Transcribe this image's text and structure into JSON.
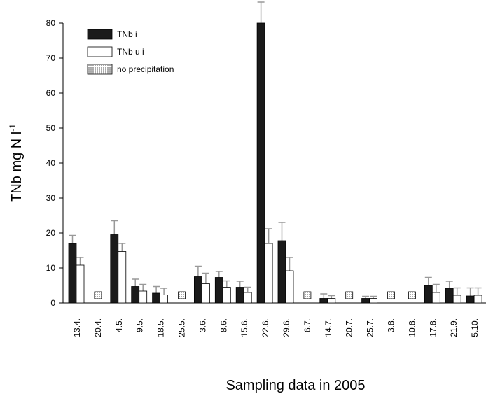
{
  "chart_data": {
    "type": "bar",
    "ylabel": "TNb mg N l",
    "ylabel_sup": "-1",
    "xlabel": "Sampling data in 2005",
    "categories": [
      "13.4.",
      "20.4.",
      "4.5.",
      "9.5.",
      "18.5.",
      "25.5.",
      "3.6.",
      "8.6.",
      "15.6.",
      "22.6.",
      "29.6.",
      "6.7.",
      "14.7.",
      "20.7.",
      "25.7.",
      "3.8.",
      "10.8.",
      "17.8.",
      "21.9.",
      "5.10."
    ],
    "series": [
      {
        "name": "TNb i",
        "color": "#1a1a1a",
        "values": [
          17,
          null,
          19.5,
          4.7,
          2.8,
          null,
          7.5,
          7.3,
          4.5,
          80,
          17.8,
          null,
          1.3,
          null,
          1.3,
          null,
          null,
          5,
          4.2,
          2
        ],
        "errors": [
          2.3,
          null,
          4,
          2.1,
          1.9,
          null,
          3,
          1.7,
          1.7,
          6,
          5.2,
          null,
          1.3,
          null,
          0.6,
          null,
          null,
          2.3,
          2,
          2.3
        ]
      },
      {
        "name": "TNb u i",
        "color": "#ffffff",
        "values": [
          10.8,
          null,
          14.7,
          3.4,
          2.3,
          null,
          5.5,
          4.5,
          3,
          17,
          9.2,
          null,
          1.3,
          null,
          1.3,
          null,
          null,
          3,
          2.2,
          2.2
        ],
        "errors": [
          2.2,
          null,
          2.3,
          1.9,
          1.9,
          null,
          3,
          1.8,
          1.5,
          4.2,
          3.8,
          null,
          0.8,
          null,
          0.6,
          null,
          null,
          2.3,
          2.1,
          2.1
        ]
      },
      {
        "name": "no precipitation",
        "pattern": "dots",
        "flags": [
          false,
          true,
          false,
          false,
          false,
          true,
          false,
          false,
          false,
          false,
          false,
          true,
          false,
          true,
          false,
          true,
          true,
          false,
          false,
          false
        ]
      }
    ],
    "error_color": "#999999",
    "ylim": [
      0,
      80
    ],
    "yticks": [
      0,
      10,
      20,
      30,
      40,
      50,
      60,
      70,
      80
    ]
  }
}
